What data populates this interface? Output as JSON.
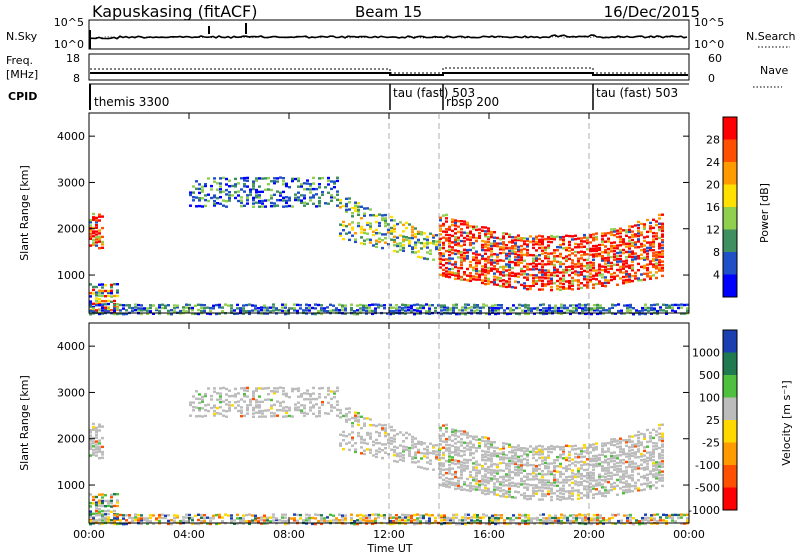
{
  "header": {
    "station": "Kapuskasing (fitACF)",
    "beam": "Beam 15",
    "date": "16/Dec/2015"
  },
  "noise_panel": {
    "left_label": "N.Sky",
    "left_ticks": [
      "10^5",
      "10^0"
    ],
    "right_ticks": [
      "10^5",
      "10^0"
    ],
    "right_label": "N.Search"
  },
  "freq_panel": {
    "left_label_1": "Freq.",
    "left_label_2": "[MHz]",
    "left_ticks": [
      "18",
      "8"
    ],
    "right_ticks": [
      "60",
      "0"
    ],
    "right_label": "Nave"
  },
  "cpid_panel": {
    "label": "CPID",
    "modes": [
      "themis 3300",
      "tau (fast) 503",
      "rbsp 200",
      "tau (fast) 503"
    ]
  },
  "power_panel": {
    "ylabel": "Slant Range [km]",
    "yticks": [
      "4000",
      "3000",
      "2000",
      "1000"
    ],
    "cbar_label": "Power [dB]",
    "cbar_ticks": [
      "28",
      "24",
      "20",
      "16",
      "12",
      "8",
      "4"
    ],
    "cbar_colors": [
      "#ff0000",
      "#ff5000",
      "#ff9a00",
      "#ffe000",
      "#8fd04f",
      "#3f8f5f",
      "#2050c8",
      "#0000ff"
    ]
  },
  "velocity_panel": {
    "ylabel": "Slant Range [km]",
    "yticks": [
      "4000",
      "3000",
      "2000",
      "1000"
    ],
    "cbar_label": "Velocity [m s⁻¹]",
    "cbar_ticks": [
      "1000",
      "500",
      "100",
      "25",
      "-25",
      "-100",
      "-500",
      "-1000"
    ],
    "cbar_colors": [
      "#1a3fb0",
      "#1f7a4f",
      "#4fbf3f",
      "#bcbcbc",
      "#ffd800",
      "#ff9a00",
      "#ff5000",
      "#ff0000"
    ]
  },
  "time_axis": {
    "ticks": [
      "00:00",
      "04:00",
      "08:00",
      "12:00",
      "16:00",
      "20:00",
      "00:00"
    ],
    "label": "Time UT"
  },
  "chart_data": {
    "type": "heatmap",
    "x_hours": [
      0,
      24
    ],
    "y_km": [
      180,
      4500
    ],
    "mode_change_hours": [
      12,
      14,
      20
    ],
    "scatter_regions": [
      {
        "t": [
          0,
          0.6
        ],
        "r": [
          1600,
          2400
        ],
        "power": "high",
        "velocity": "low"
      },
      {
        "t": [
          0,
          1.2
        ],
        "r": [
          200,
          900
        ],
        "power": "mixed",
        "velocity": "mixed"
      },
      {
        "t": [
          4,
          10
        ],
        "r": [
          2500,
          3200
        ],
        "power": "low",
        "velocity": "low"
      },
      {
        "t": [
          10,
          14
        ],
        "r": [
          1300,
          2800
        ],
        "power": "medium",
        "velocity": "low"
      },
      {
        "t": [
          14,
          23
        ],
        "r": [
          700,
          2000
        ],
        "power": "high",
        "velocity": "low"
      },
      {
        "t": [
          0,
          24
        ],
        "r": [
          180,
          450
        ],
        "power": "low",
        "velocity": "mixed"
      }
    ]
  }
}
